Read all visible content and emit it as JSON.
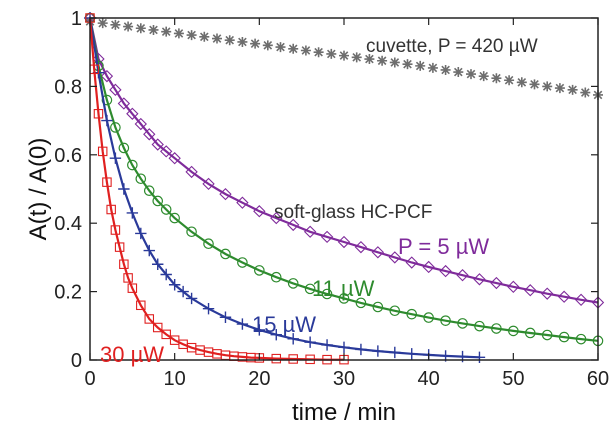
{
  "chart_data": {
    "type": "scatter",
    "xlabel": "time / min",
    "ylabel": "A(t) / A(0)",
    "xlim": [
      0,
      60
    ],
    "ylim": [
      0,
      1
    ],
    "xticks": [
      0,
      10,
      20,
      30,
      40,
      50,
      60
    ],
    "yticks": [
      0,
      0.2,
      0.4,
      0.6,
      0.8,
      1
    ],
    "ytick_labels": [
      "0",
      "0.2",
      "0.4",
      "0.6",
      "0.8",
      "1"
    ],
    "grid": false,
    "annotations": {
      "cuvette": "cuvette, P = 420 µW",
      "fiber": "soft-glass HC-PCF",
      "p5": "P = 5 µW",
      "p11": "11 µW",
      "p15": "15 µW",
      "p30": "30 µW"
    },
    "series": [
      {
        "power_uW": 420,
        "color": "#6e6e6e",
        "marker": "asterisk",
        "fit": false,
        "x": [
          0,
          1.5,
          3,
          4.5,
          6,
          7.5,
          9,
          10.5,
          12,
          13.5,
          15,
          16.5,
          18,
          19.5,
          21,
          22.5,
          24,
          25.5,
          27,
          28.5,
          30,
          31.5,
          33,
          34.5,
          36,
          37.5,
          39,
          40.5,
          42,
          43.5,
          45,
          46.5,
          48,
          49.5,
          51,
          52.5,
          54,
          55.5,
          57,
          58.5,
          60
        ],
        "y": [
          0.99,
          0.985,
          0.98,
          0.975,
          0.97,
          0.965,
          0.96,
          0.955,
          0.95,
          0.945,
          0.94,
          0.935,
          0.93,
          0.925,
          0.92,
          0.915,
          0.91,
          0.905,
          0.9,
          0.895,
          0.89,
          0.885,
          0.88,
          0.875,
          0.87,
          0.865,
          0.86,
          0.854,
          0.848,
          0.842,
          0.836,
          0.83,
          0.824,
          0.818,
          0.812,
          0.806,
          0.8,
          0.795,
          0.79,
          0.782,
          0.775
        ]
      },
      {
        "power_uW": 5,
        "color": "#7f2b9b",
        "marker": "diamond",
        "x": [
          0,
          1,
          2,
          3,
          4,
          5,
          6,
          7,
          8,
          9,
          10,
          12,
          14,
          16,
          18,
          20,
          22,
          24,
          26,
          28,
          30,
          32,
          34,
          36,
          38,
          40,
          42,
          44,
          46,
          48,
          50,
          52,
          54,
          56,
          58,
          60
        ],
        "y": [
          1,
          0.88,
          0.83,
          0.79,
          0.75,
          0.72,
          0.69,
          0.66,
          0.63,
          0.61,
          0.59,
          0.55,
          0.515,
          0.485,
          0.46,
          0.435,
          0.415,
          0.395,
          0.375,
          0.36,
          0.345,
          0.33,
          0.315,
          0.3,
          0.285,
          0.272,
          0.26,
          0.248,
          0.236,
          0.225,
          0.214,
          0.204,
          0.194,
          0.185,
          0.176,
          0.168
        ]
      },
      {
        "power_uW": 11,
        "color": "#2e8b2e",
        "marker": "circle",
        "x": [
          0,
          1,
          2,
          3,
          4,
          5,
          6,
          7,
          8,
          9,
          10,
          12,
          14,
          16,
          18,
          20,
          22,
          24,
          26,
          28,
          30,
          32,
          34,
          36,
          38,
          40,
          42,
          44,
          46,
          48,
          50,
          52,
          54,
          56,
          58,
          60
        ],
        "y": [
          1,
          0.86,
          0.76,
          0.68,
          0.62,
          0.57,
          0.53,
          0.495,
          0.465,
          0.44,
          0.415,
          0.375,
          0.34,
          0.31,
          0.285,
          0.262,
          0.242,
          0.224,
          0.208,
          0.193,
          0.18,
          0.167,
          0.155,
          0.144,
          0.134,
          0.124,
          0.115,
          0.107,
          0.099,
          0.092,
          0.085,
          0.079,
          0.073,
          0.067,
          0.061,
          0.056
        ]
      },
      {
        "power_uW": 15,
        "color": "#2a3a9a",
        "marker": "plus",
        "x": [
          0,
          1,
          2,
          3,
          4,
          5,
          6,
          7,
          8,
          9,
          10,
          11,
          12,
          14,
          16,
          18,
          20,
          22,
          24,
          26,
          28,
          30,
          32,
          34,
          36,
          38,
          40,
          42,
          44,
          46
        ],
        "y": [
          1,
          0.84,
          0.7,
          0.59,
          0.5,
          0.43,
          0.37,
          0.32,
          0.28,
          0.25,
          0.22,
          0.2,
          0.18,
          0.15,
          0.125,
          0.105,
          0.088,
          0.074,
          0.062,
          0.052,
          0.044,
          0.037,
          0.031,
          0.026,
          0.022,
          0.018,
          0.015,
          0.012,
          0.01,
          0.008
        ]
      },
      {
        "power_uW": 30,
        "color": "#e02020",
        "marker": "square",
        "x": [
          0,
          0.5,
          1,
          1.5,
          2,
          2.5,
          3,
          3.5,
          4,
          4.5,
          5,
          6,
          7,
          8,
          9,
          10,
          11,
          12,
          13,
          14,
          15,
          16,
          17,
          18,
          19,
          20,
          22,
          24,
          26,
          28,
          30
        ],
        "y": [
          1,
          0.85,
          0.72,
          0.61,
          0.52,
          0.44,
          0.38,
          0.33,
          0.28,
          0.24,
          0.21,
          0.16,
          0.12,
          0.095,
          0.075,
          0.058,
          0.046,
          0.036,
          0.029,
          0.023,
          0.018,
          0.014,
          0.011,
          0.009,
          0.007,
          0.006,
          0.004,
          0.003,
          0.002,
          0.001,
          0.001
        ]
      }
    ]
  }
}
